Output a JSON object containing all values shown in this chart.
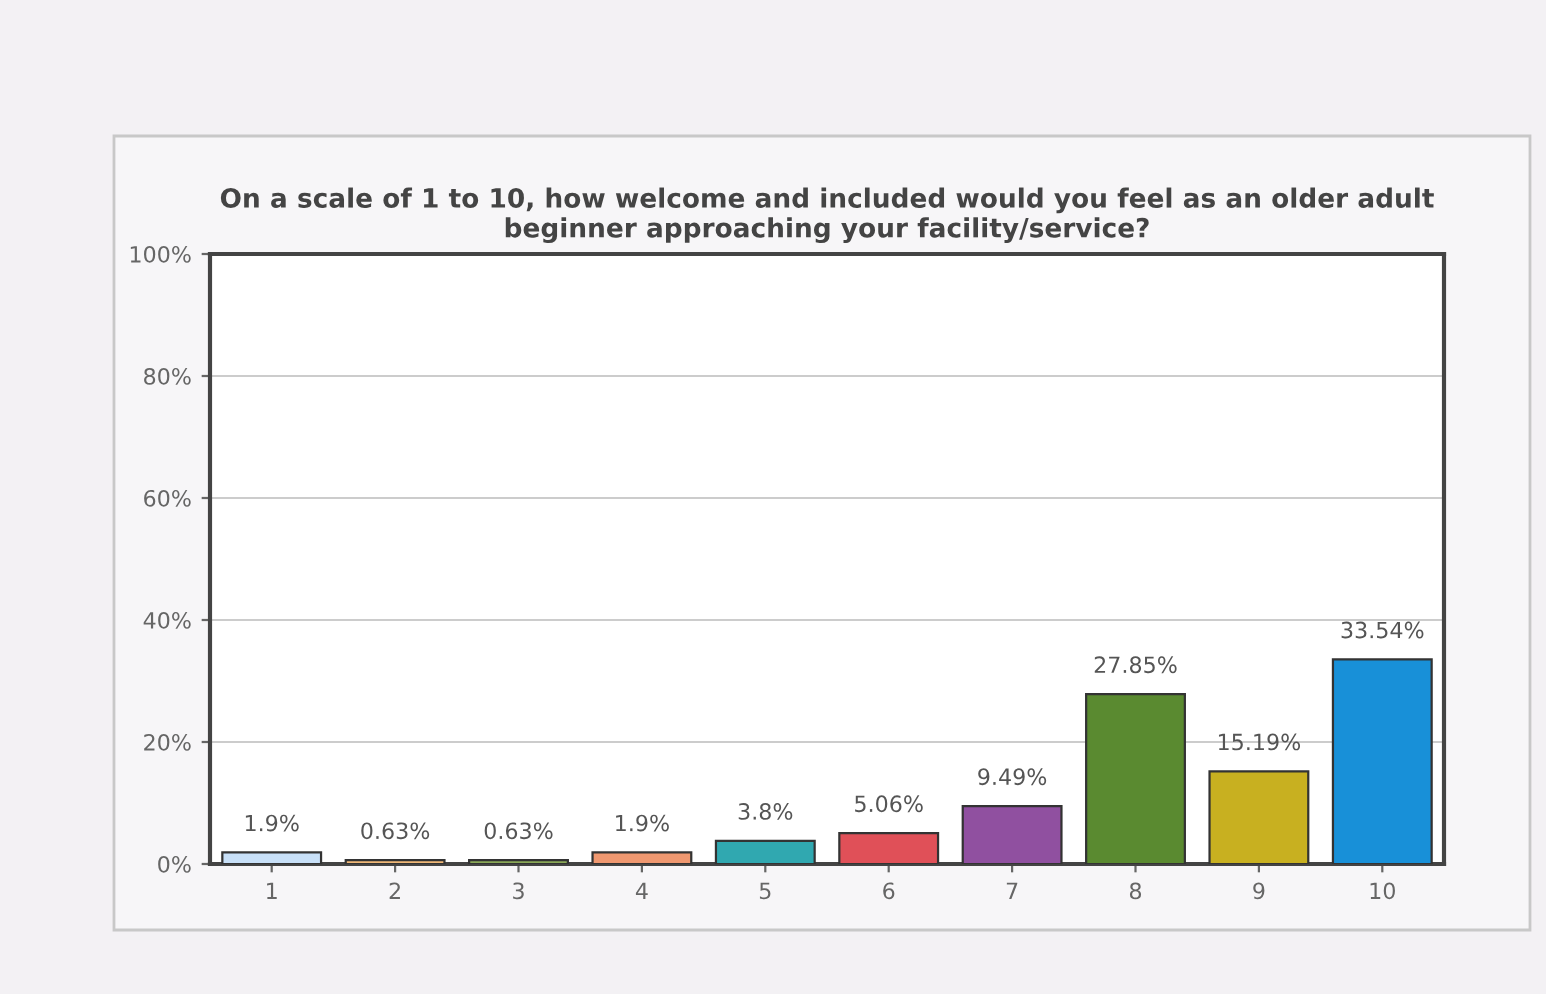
{
  "chart_data": {
    "type": "bar",
    "title": "On a scale of 1 to 10, how welcome and included would you feel as an older adult\nbeginner approaching your facility/service?",
    "categories": [
      "1",
      "2",
      "3",
      "4",
      "5",
      "6",
      "7",
      "8",
      "9",
      "10"
    ],
    "values": [
      1.9,
      0.63,
      0.63,
      1.9,
      3.8,
      5.06,
      9.49,
      27.85,
      15.19,
      33.54
    ],
    "value_labels": [
      "1.9%",
      "0.63%",
      "0.63%",
      "1.9%",
      "3.8%",
      "5.06%",
      "9.49%",
      "27.85%",
      "15.19%",
      "33.54%"
    ],
    "colors": [
      "#c8e0f8",
      "#f0b878",
      "#8aa858",
      "#f09870",
      "#30a8b0",
      "#e05058",
      "#9050a0",
      "#5a8a30",
      "#c8b020",
      "#1890d8"
    ],
    "ylim": [
      0,
      100
    ],
    "yticks": [
      {
        "value": 0,
        "label": "0%"
      },
      {
        "value": 20,
        "label": "20%"
      },
      {
        "value": 40,
        "label": "40%"
      },
      {
        "value": 60,
        "label": "60%"
      },
      {
        "value": 80,
        "label": "80%"
      },
      {
        "value": 100,
        "label": "100%"
      }
    ],
    "grid": "y"
  }
}
